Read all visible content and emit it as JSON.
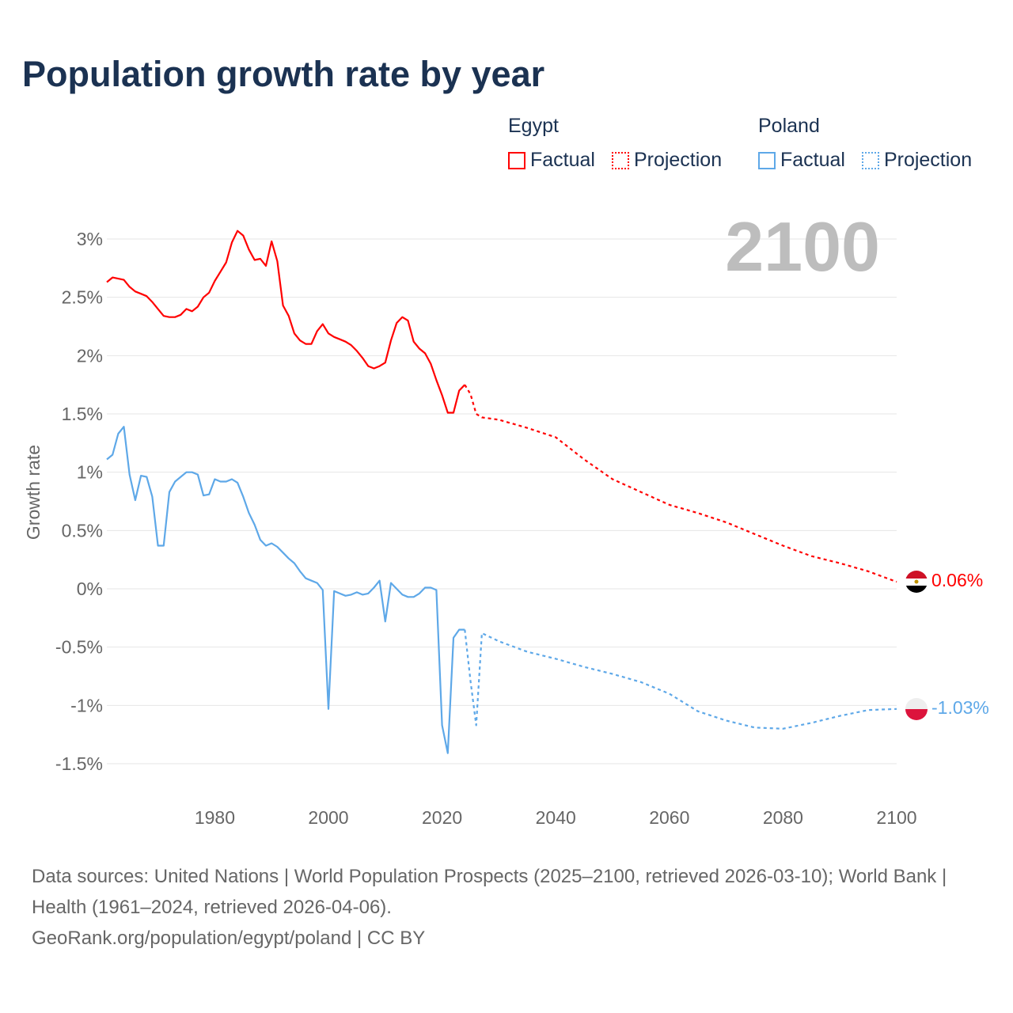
{
  "title": "Population growth rate by year",
  "legend": [
    {
      "group": "Egypt",
      "color": "#ff0000",
      "factual": "Factual",
      "projection": "Projection"
    },
    {
      "group": "Poland",
      "color": "#5ea8e8",
      "factual": "Factual",
      "projection": "Projection"
    }
  ],
  "source": {
    "line1": "Data sources: United Nations | World Population Prospects (2025–2100, retrieved 2026-03-10); World Bank | Health (1961–2024, retrieved 2026-04-06).",
    "line2": "GeoRank.org/population/egypt/poland | CC BY"
  },
  "chart_data": {
    "type": "line",
    "title": "Population growth rate by year",
    "ylabel": "Growth rate",
    "xlabel": "",
    "year_label": "2100",
    "xlim": [
      1961,
      2100
    ],
    "ylim": [
      -1.5,
      3
    ],
    "x_ticks": [
      1980,
      2000,
      2020,
      2040,
      2060,
      2080,
      2100
    ],
    "y_ticks": [
      {
        "v": 3,
        "label": "3%"
      },
      {
        "v": 2.5,
        "label": "2.5%"
      },
      {
        "v": 2,
        "label": "2%"
      },
      {
        "v": 1.5,
        "label": "1.5%"
      },
      {
        "v": 1,
        "label": "1%"
      },
      {
        "v": 0.5,
        "label": "0.5%"
      },
      {
        "v": 0,
        "label": "0%"
      },
      {
        "v": -0.5,
        "label": "-0.5%"
      },
      {
        "v": -1,
        "label": "-1%"
      },
      {
        "v": -1.5,
        "label": "-1.5%"
      }
    ],
    "grid": true,
    "series": [
      {
        "name": "Egypt",
        "color": "#ff0000",
        "end_label": "0.06%",
        "factual": {
          "x": [
            1961,
            1962,
            1963,
            1964,
            1965,
            1966,
            1967,
            1968,
            1969,
            1970,
            1971,
            1972,
            1973,
            1974,
            1975,
            1976,
            1977,
            1978,
            1979,
            1980,
            1981,
            1982,
            1983,
            1984,
            1985,
            1986,
            1987,
            1988,
            1989,
            1990,
            1991,
            1992,
            1993,
            1994,
            1995,
            1996,
            1997,
            1998,
            1999,
            2000,
            2001,
            2002,
            2003,
            2004,
            2005,
            2006,
            2007,
            2008,
            2009,
            2010,
            2011,
            2012,
            2013,
            2014,
            2015,
            2016,
            2017,
            2018,
            2019,
            2020,
            2021,
            2022,
            2023,
            2024
          ],
          "y": [
            2.63,
            2.67,
            2.66,
            2.65,
            2.59,
            2.55,
            2.53,
            2.51,
            2.46,
            2.4,
            2.34,
            2.33,
            2.33,
            2.35,
            2.4,
            2.38,
            2.42,
            2.5,
            2.54,
            2.64,
            2.72,
            2.8,
            2.97,
            3.07,
            3.03,
            2.91,
            2.82,
            2.83,
            2.77,
            2.98,
            2.81,
            2.43,
            2.34,
            2.19,
            2.13,
            2.1,
            2.1,
            2.21,
            2.27,
            2.19,
            2.16,
            2.14,
            2.12,
            2.09,
            2.04,
            1.98,
            1.91,
            1.89,
            1.91,
            1.94,
            2.13,
            2.28,
            2.33,
            2.3,
            2.12,
            2.06,
            2.02,
            1.93,
            1.79,
            1.66,
            1.51,
            1.51,
            1.7,
            1.75
          ]
        },
        "projection": {
          "x": [
            2024,
            2025,
            2026,
            2027,
            2030,
            2035,
            2040,
            2045,
            2050,
            2055,
            2060,
            2065,
            2070,
            2075,
            2080,
            2085,
            2090,
            2095,
            2100
          ],
          "y": [
            1.75,
            1.67,
            1.5,
            1.47,
            1.45,
            1.38,
            1.3,
            1.11,
            0.94,
            0.83,
            0.72,
            0.65,
            0.57,
            0.47,
            0.37,
            0.28,
            0.22,
            0.15,
            0.06
          ]
        }
      },
      {
        "name": "Poland",
        "color": "#5ea8e8",
        "end_label": "-1.03%",
        "factual": {
          "x": [
            1961,
            1962,
            1963,
            1964,
            1965,
            1966,
            1967,
            1968,
            1969,
            1970,
            1971,
            1972,
            1973,
            1974,
            1975,
            1976,
            1977,
            1978,
            1979,
            1980,
            1981,
            1982,
            1983,
            1984,
            1985,
            1986,
            1987,
            1988,
            1989,
            1990,
            1991,
            1992,
            1993,
            1994,
            1995,
            1996,
            1997,
            1998,
            1999,
            2000,
            2001,
            2002,
            2003,
            2004,
            2005,
            2006,
            2007,
            2008,
            2009,
            2010,
            2011,
            2012,
            2013,
            2014,
            2015,
            2016,
            2017,
            2018,
            2019,
            2020,
            2021,
            2022,
            2023,
            2024
          ],
          "y": [
            1.11,
            1.15,
            1.33,
            1.39,
            0.98,
            0.76,
            0.97,
            0.96,
            0.79,
            0.37,
            0.37,
            0.83,
            0.92,
            0.96,
            1.0,
            1.0,
            0.98,
            0.8,
            0.81,
            0.94,
            0.92,
            0.92,
            0.94,
            0.91,
            0.79,
            0.65,
            0.55,
            0.42,
            0.37,
            0.39,
            0.36,
            0.31,
            0.26,
            0.22,
            0.15,
            0.09,
            0.07,
            0.05,
            -0.01,
            -1.03,
            -0.02,
            -0.04,
            -0.06,
            -0.05,
            -0.03,
            -0.05,
            -0.04,
            0.01,
            0.07,
            -0.28,
            0.05,
            0.0,
            -0.05,
            -0.07,
            -0.07,
            -0.04,
            0.01,
            0.01,
            -0.01,
            -1.17,
            -1.41,
            -0.42,
            -0.35,
            -0.35
          ]
        },
        "projection": {
          "x": [
            2024,
            2025,
            2026,
            2027,
            2030,
            2035,
            2040,
            2045,
            2050,
            2055,
            2060,
            2065,
            2070,
            2075,
            2080,
            2085,
            2090,
            2095,
            2100
          ],
          "y": [
            -0.35,
            -0.79,
            -1.17,
            -0.38,
            -0.45,
            -0.54,
            -0.6,
            -0.67,
            -0.73,
            -0.8,
            -0.9,
            -1.05,
            -1.13,
            -1.19,
            -1.2,
            -1.15,
            -1.09,
            -1.04,
            -1.03
          ]
        }
      }
    ]
  }
}
